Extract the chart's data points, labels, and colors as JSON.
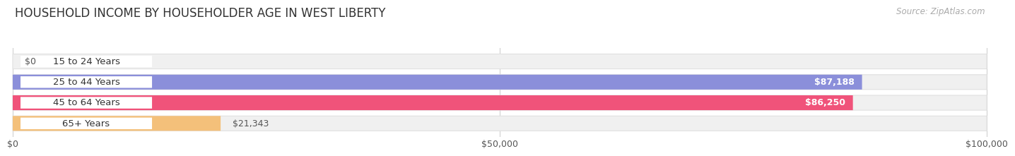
{
  "title": "HOUSEHOLD INCOME BY HOUSEHOLDER AGE IN WEST LIBERTY",
  "source": "Source: ZipAtlas.com",
  "categories": [
    "15 to 24 Years",
    "25 to 44 Years",
    "45 to 64 Years",
    "65+ Years"
  ],
  "values": [
    0,
    87188,
    86250,
    21343
  ],
  "bar_colors": [
    "#62ceca",
    "#8b8fda",
    "#f0537a",
    "#f4c07a"
  ],
  "x_max": 100000,
  "x_ticks": [
    0,
    50000,
    100000
  ],
  "x_tick_labels": [
    "$0",
    "$50,000",
    "$100,000"
  ],
  "value_labels": [
    "$0",
    "$87,188",
    "$86,250",
    "$21,343"
  ],
  "bg_color": "#ffffff",
  "bar_bg_color": "#f0f0f0",
  "label_bg_color": "#ffffff",
  "title_fontsize": 12,
  "source_fontsize": 8.5,
  "label_fontsize": 9.5,
  "value_fontsize": 9,
  "tick_fontsize": 9
}
